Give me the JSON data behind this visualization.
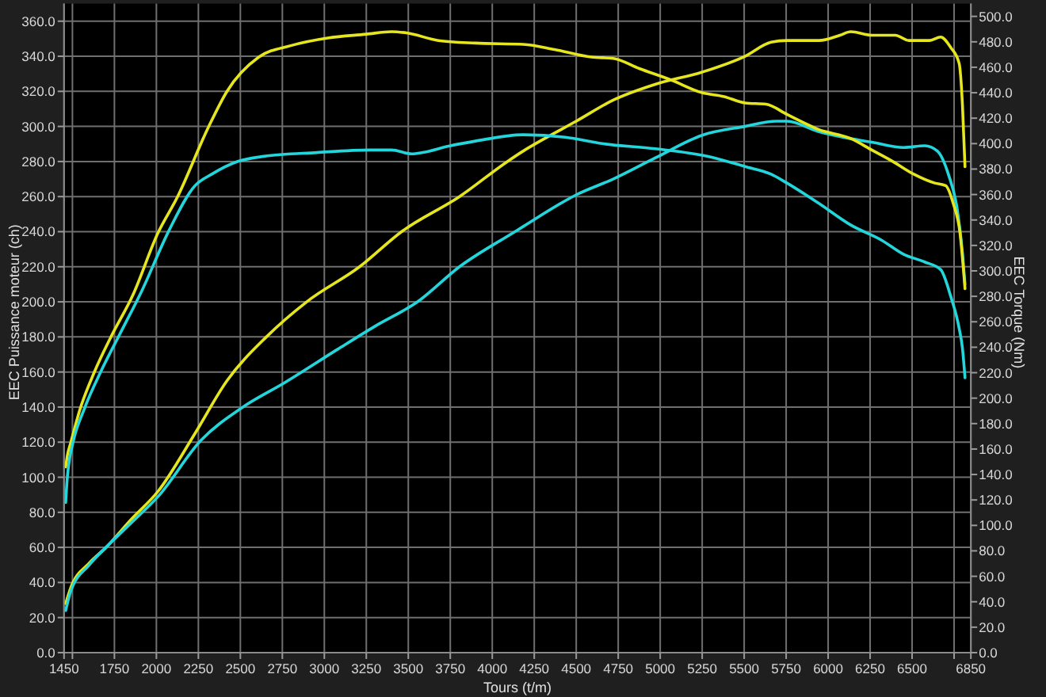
{
  "chart_data": {
    "type": "line",
    "xlabel": "Tours (t/m)",
    "ylabel": "EEC Puissance moteur (ch)",
    "y2label": "EEC Torque (Nm)",
    "xlim": [
      1450,
      6850
    ],
    "xticks": [
      1450,
      {
        "value": 1500,
        "label": null
      },
      1750,
      2000,
      2250,
      2500,
      2750,
      3000,
      3250,
      3500,
      3750,
      4000,
      4250,
      4500,
      4750,
      5000,
      5250,
      5500,
      5750,
      6000,
      6250,
      6500,
      {
        "value": 6750,
        "label": null
      },
      6850
    ],
    "ylim": [
      0,
      370
    ],
    "yticks": [
      {
        "value": 0,
        "label": "0.0"
      },
      {
        "value": 20,
        "label": "20.0"
      },
      {
        "value": 40,
        "label": "40.0"
      },
      {
        "value": 60,
        "label": "60.0"
      },
      {
        "value": 80,
        "label": "80.0"
      },
      {
        "value": 100,
        "label": "100.0"
      },
      {
        "value": 120,
        "label": "120.0"
      },
      {
        "value": 140,
        "label": "140.0"
      },
      {
        "value": 160,
        "label": "160.0"
      },
      {
        "value": 180,
        "label": "180.0"
      },
      {
        "value": 200,
        "label": "200.0"
      },
      {
        "value": 220,
        "label": "220.0"
      },
      {
        "value": 240,
        "label": "240.0"
      },
      {
        "value": 260,
        "label": "260.0"
      },
      {
        "value": 280,
        "label": "280.0"
      },
      {
        "value": 300,
        "label": "300.0"
      },
      {
        "value": 320,
        "label": "320.0"
      },
      {
        "value": 340,
        "label": "340.0"
      },
      {
        "value": 360,
        "label": "360.0"
      }
    ],
    "y2lim": [
      0,
      510
    ],
    "y2ticks": [
      {
        "value": 0,
        "label": "0.0"
      },
      {
        "value": 20,
        "label": "20.0"
      },
      {
        "value": 40,
        "label": "40.0"
      },
      {
        "value": 60,
        "label": "60.0"
      },
      {
        "value": 80,
        "label": "80.0"
      },
      {
        "value": 100,
        "label": "100.0"
      },
      {
        "value": 120,
        "label": "120.0"
      },
      {
        "value": 140,
        "label": "140.0"
      },
      {
        "value": 160,
        "label": "160.0"
      },
      {
        "value": 180,
        "label": "180.0"
      },
      {
        "value": 200,
        "label": "200.0"
      },
      {
        "value": 220,
        "label": "220.0"
      },
      {
        "value": 240,
        "label": "240.0"
      },
      {
        "value": 260,
        "label": "260.0"
      },
      {
        "value": 280,
        "label": "280.0"
      },
      {
        "value": 300,
        "label": "300.0"
      },
      {
        "value": 320,
        "label": "320.0"
      },
      {
        "value": 340,
        "label": "340.0"
      },
      {
        "value": 360,
        "label": "360.0"
      },
      {
        "value": 380,
        "label": "380.0"
      },
      {
        "value": 400,
        "label": "400.0"
      },
      {
        "value": 420,
        "label": "420.0"
      },
      {
        "value": 440,
        "label": "440.0"
      },
      {
        "value": 460,
        "label": "460.0"
      },
      {
        "value": 480,
        "label": "480.0"
      },
      {
        "value": 500,
        "label": "500.0"
      }
    ],
    "grid": true,
    "series": [
      {
        "color": "#e6e61e",
        "x": [
          1460,
          1490,
          1600,
          1700,
          1850,
          2010,
          2230,
          2420,
          2655,
          2895,
          3210,
          3460,
          3805,
          4090,
          4185,
          4310,
          4500,
          4720,
          4970,
          5250,
          5505,
          5660,
          5755,
          5945,
          6070,
          6135,
          6260,
          6400,
          6480,
          6605,
          6670,
          6730,
          6780,
          6800,
          6815
        ],
        "values": [
          28,
          37,
          51,
          60,
          76,
          92,
          125,
          155,
          180,
          200,
          220,
          240,
          260,
          280,
          286,
          293,
          303,
          315,
          324,
          331,
          340,
          348,
          349,
          349,
          352,
          354,
          352,
          352,
          349,
          349,
          351,
          345,
          336,
          312,
          277
        ]
      },
      {
        "color": "#22d6dc",
        "x": [
          1460,
          1490,
          1600,
          1700,
          1850,
          2010,
          2265,
          2515,
          2765,
          3080,
          3300,
          3555,
          3805,
          4135,
          4185,
          4500,
          4720,
          4970,
          5250,
          5505,
          5690,
          5755,
          5945,
          6135,
          6260,
          6450,
          6575,
          6650,
          6715,
          6770,
          6800,
          6815
        ],
        "values": [
          24,
          35,
          50,
          60,
          74,
          89,
          121,
          140,
          154,
          173,
          186,
          200,
          220,
          240,
          243,
          261,
          270,
          282,
          295,
          300,
          303,
          303,
          297,
          293,
          291,
          288,
          289,
          286,
          273,
          252,
          228,
          210
        ]
      },
      {
        "color": "#e6e61e",
        "axis": "y2",
        "x": [
          1460,
          1470,
          1490,
          1547,
          1629,
          1729,
          1860,
          2010,
          2125,
          2310,
          2420,
          2610,
          2800,
          3020,
          3250,
          3400,
          3490,
          3680,
          3900,
          4185,
          4370,
          4590,
          4720,
          4875,
          5065,
          5250,
          5380,
          5505,
          5630,
          5755,
          5945,
          6135,
          6260,
          6385,
          6510,
          6635,
          6700,
          6745,
          6785,
          6815
        ],
        "values": [
          146,
          155,
          165,
          192,
          220,
          248,
          281,
          330,
          358,
          413,
          441,
          468,
          477,
          483,
          486,
          488,
          487,
          481,
          479,
          478,
          474,
          468,
          467,
          459,
          450,
          440,
          437,
          432,
          431,
          423,
          411,
          404,
          395,
          386,
          376,
          369,
          367,
          353,
          330,
          286
        ]
      },
      {
        "color": "#22d6dc",
        "axis": "y2",
        "x": [
          1460,
          1468,
          1477,
          1503,
          1572,
          1666,
          1777,
          1912,
          2076,
          2230,
          2330,
          2485,
          2640,
          2955,
          3270,
          3400,
          3520,
          3585,
          3740,
          3900,
          4185,
          4435,
          4655,
          4970,
          5285,
          5505,
          5660,
          5755,
          5945,
          6135,
          6320,
          6450,
          6575,
          6670,
          6730,
          6780,
          6800,
          6815
        ],
        "values": [
          118,
          135,
          147,
          165,
          192,
          220,
          249,
          284,
          332,
          367,
          376,
          386,
          390,
          393,
          395,
          395,
          392,
          393,
          398,
          402,
          407,
          405,
          400,
          396,
          390,
          382,
          376,
          369,
          353,
          336,
          324,
          313,
          307,
          301,
          280,
          255,
          239,
          216
        ]
      }
    ]
  }
}
